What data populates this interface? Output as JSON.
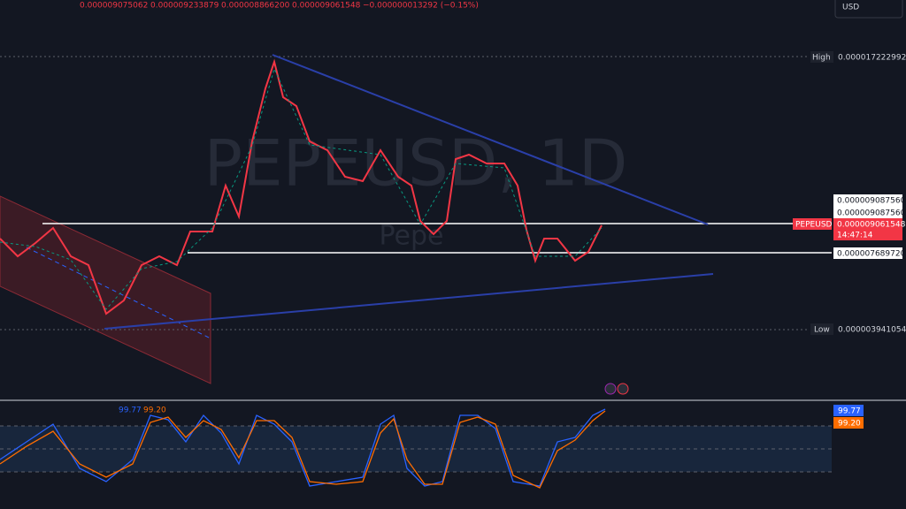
{
  "header": {
    "ohlc": [
      "0.000009075062",
      "0.000009233879",
      "0.000008866200",
      "0.000009061548"
    ],
    "change": "−0.000000013292 (−0.15%)"
  },
  "axis": {
    "currency": "USD"
  },
  "labels": {
    "high_tag": "High",
    "high_value": "0.000017222992",
    "level_1": "0.000009087560",
    "level_2": "0.000009087560",
    "symbol": "PEPEUSD",
    "last_price": "0.000009061548",
    "countdown": "14:47:14",
    "level_3": "0.000007689720",
    "low_tag": "Low",
    "low_value": "0.000003941054"
  },
  "watermark": {
    "symbol": "PEPEUSD, 1D",
    "name": "Pepe"
  },
  "oscillator": {
    "k": "99.77",
    "d": "99.20",
    "k_badge": "99.77",
    "d_badge": "99.20"
  }
}
